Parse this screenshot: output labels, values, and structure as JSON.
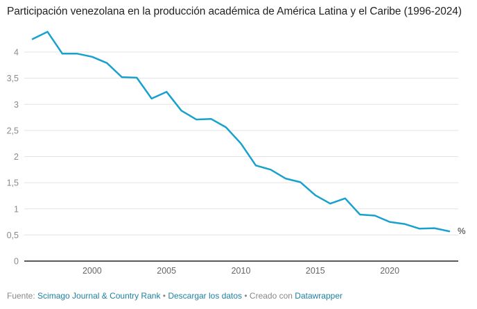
{
  "chart_data": {
    "type": "line",
    "title": "Participación venezolana en la producción académica de América Latina y el Caribe (1996-2024)",
    "xlabel": "",
    "ylabel": "",
    "unit_label": "%",
    "line_color": "#18a1cd",
    "grid": true,
    "legend": "none",
    "xlim": [
      1996,
      2024
    ],
    "ylim": [
      0,
      4.4
    ],
    "x_ticks": [
      2000,
      2005,
      2010,
      2015,
      2020
    ],
    "x_tick_labels": [
      "2000",
      "2005",
      "2010",
      "2015",
      "2020"
    ],
    "y_ticks": [
      0,
      0.5,
      1,
      1.5,
      2,
      2.5,
      3,
      3.5,
      4
    ],
    "y_tick_labels": [
      "0",
      "0,5",
      "1",
      "1,5",
      "2",
      "2,5",
      "3",
      "3,5",
      "4"
    ],
    "series": [
      {
        "name": "Participación venezolana",
        "x": [
          1996,
          1997,
          1998,
          1999,
          2000,
          2001,
          2002,
          2003,
          2004,
          2005,
          2006,
          2007,
          2008,
          2009,
          2010,
          2011,
          2012,
          2013,
          2014,
          2015,
          2016,
          2017,
          2018,
          2019,
          2020,
          2021,
          2022,
          2023,
          2024
        ],
        "values": [
          4.25,
          4.39,
          3.97,
          3.97,
          3.91,
          3.79,
          3.52,
          3.51,
          3.11,
          3.24,
          2.88,
          2.71,
          2.72,
          2.56,
          2.25,
          1.83,
          1.75,
          1.58,
          1.51,
          1.26,
          1.1,
          1.2,
          0.89,
          0.87,
          0.75,
          0.71,
          0.62,
          0.63,
          0.57
        ]
      }
    ]
  },
  "footer": {
    "source_prefix": "Fuente: ",
    "source_link": "Scimago Journal & Country Rank",
    "separator": " • ",
    "download_link": "Descargar los datos",
    "created_with": "Creado con ",
    "tool_link": "Datawrapper"
  }
}
